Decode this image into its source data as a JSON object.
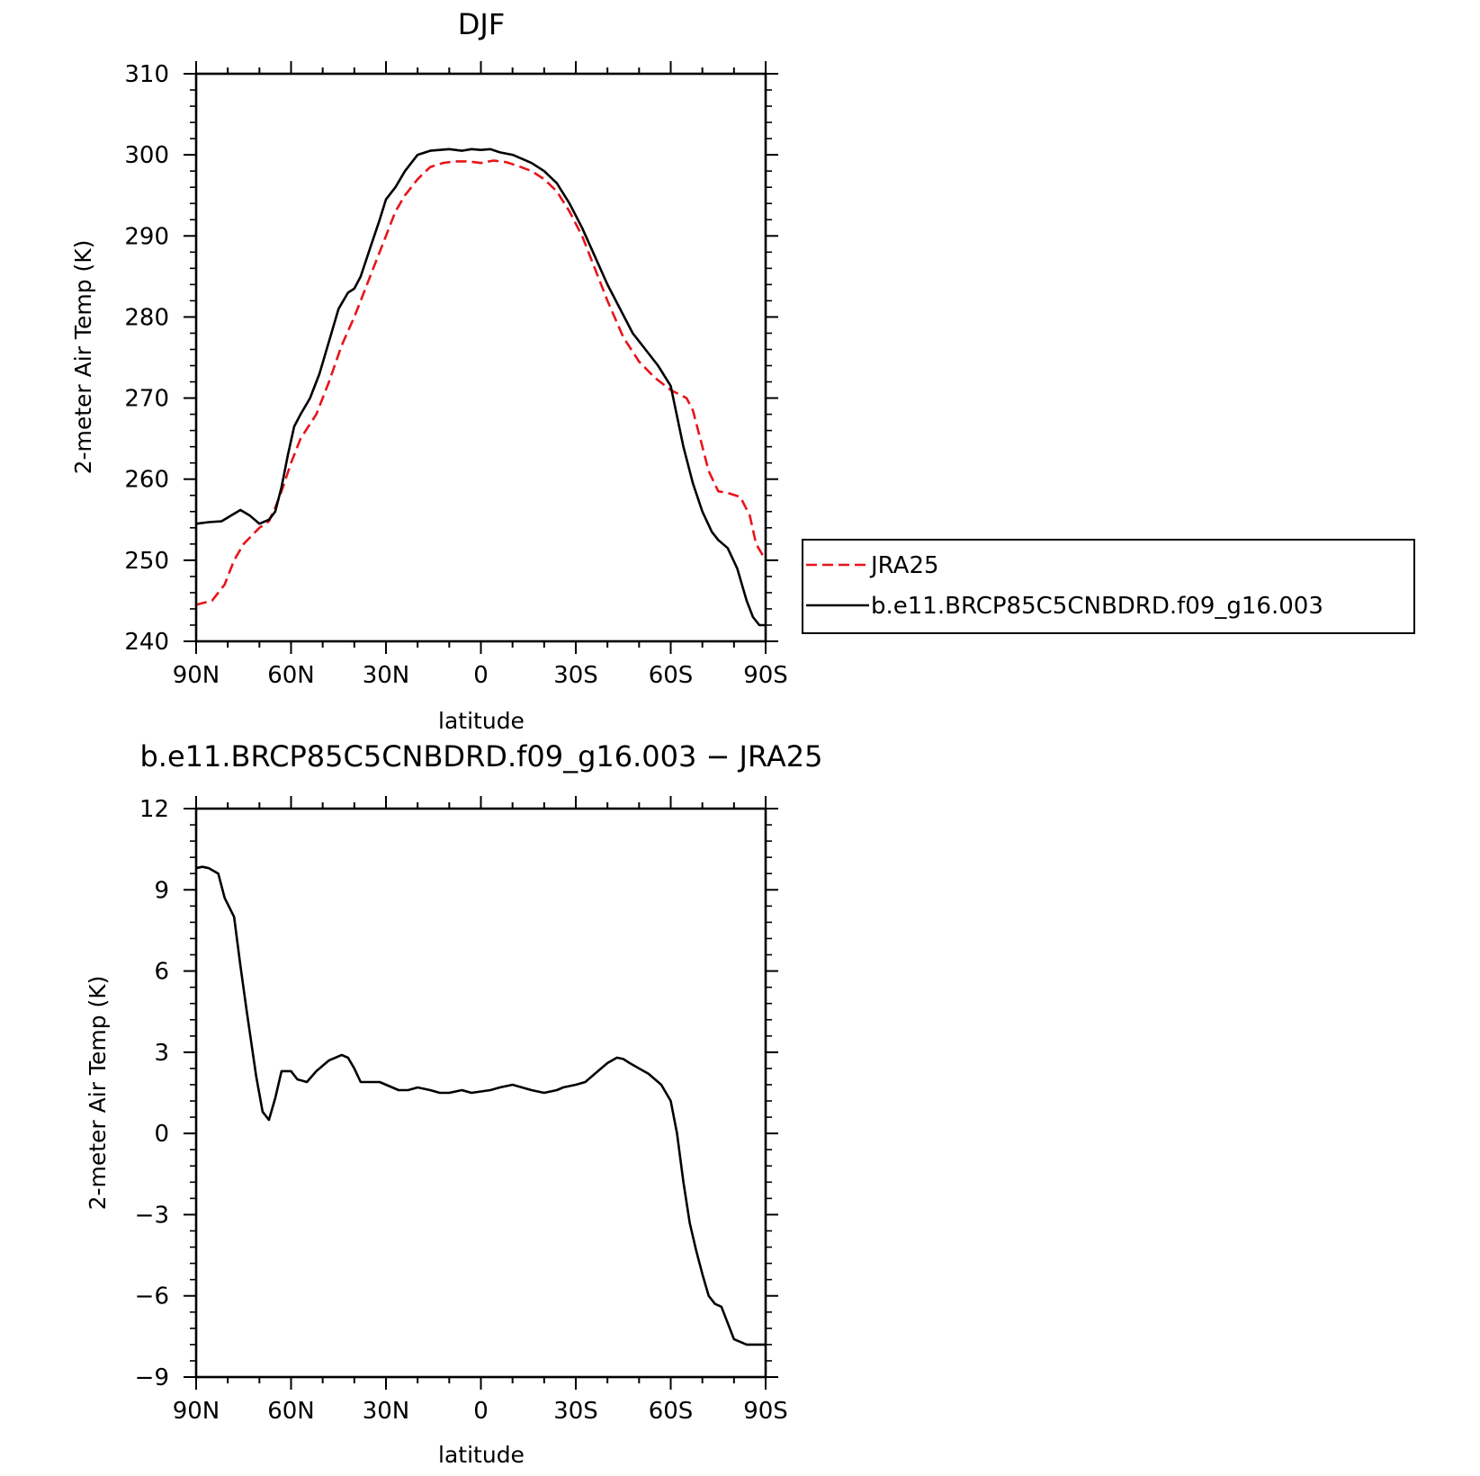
{
  "chart_data": [
    {
      "type": "line",
      "title": "DJF",
      "xlabel": "latitude",
      "ylabel": "2-meter Air Temp (K)",
      "xlim": [
        90,
        -90
      ],
      "ylim": [
        240,
        310
      ],
      "x_ticks": [
        90,
        60,
        30,
        0,
        -30,
        -60,
        -90
      ],
      "x_tick_labels": [
        "90N",
        "60N",
        "30N",
        "0",
        "30S",
        "60S",
        "90S"
      ],
      "y_ticks": [
        240,
        250,
        260,
        270,
        280,
        290,
        300,
        310
      ],
      "y_tick_labels": [
        "240",
        "250",
        "260",
        "270",
        "280",
        "290",
        "300",
        "310"
      ],
      "legend": {
        "placement": "right of plot",
        "entries": [
          "JRA25",
          "b.e11.BRCP85C5CNBDRD.f09_g16.003"
        ]
      },
      "series": [
        {
          "name": "JRA25",
          "color": "#e8141b",
          "dash": "dashed",
          "x": [
            90,
            85,
            81,
            78,
            75,
            70,
            67,
            65,
            63,
            60,
            57,
            52,
            48,
            44,
            40,
            37,
            34,
            30,
            27,
            24,
            20,
            16,
            12,
            8,
            4,
            0,
            -4,
            -8,
            -12,
            -16,
            -20,
            -24,
            -28,
            -32,
            -36,
            -40,
            -45,
            -50,
            -55,
            -60,
            -65,
            -67,
            -70,
            -72,
            -75,
            -78,
            -82,
            -85,
            -87,
            -90
          ],
          "y": [
            244.5,
            245.0,
            247.0,
            250.0,
            252.0,
            254.0,
            254.8,
            256.5,
            258.5,
            262.0,
            265.0,
            268.0,
            272.0,
            276.5,
            280.0,
            283.0,
            286.0,
            290.0,
            293.0,
            295.0,
            297.0,
            298.5,
            299.0,
            299.2,
            299.2,
            299.0,
            299.3,
            299.1,
            298.6,
            298.0,
            297.0,
            295.5,
            293.0,
            290.0,
            286.0,
            282.0,
            277.5,
            274.5,
            272.5,
            271.0,
            270.0,
            268.5,
            264.0,
            261.0,
            258.5,
            258.3,
            257.8,
            255.5,
            252.0,
            250.0
          ]
        },
        {
          "name": "b.e11.BRCP85C5CNBDRD.f09_g16.003",
          "color": "#000000",
          "dash": "solid",
          "x": [
            90,
            86,
            82,
            79,
            76,
            73,
            70,
            67,
            65,
            63,
            61,
            59,
            57,
            54,
            51,
            48,
            45,
            42,
            40,
            38,
            35,
            32,
            30,
            27,
            24,
            20,
            16,
            13,
            10,
            6,
            3,
            0,
            -3,
            -6,
            -10,
            -13,
            -16,
            -20,
            -24,
            -28,
            -32,
            -36,
            -40,
            -44,
            -48,
            -52,
            -56,
            -60,
            -64,
            -67,
            -70,
            -73,
            -75,
            -78,
            -81,
            -84,
            -86,
            -88,
            -90
          ],
          "y": [
            254.5,
            254.7,
            254.8,
            255.5,
            256.2,
            255.5,
            254.5,
            255.0,
            256.0,
            259.0,
            263.0,
            266.5,
            268.0,
            270.0,
            273.0,
            277.0,
            281.0,
            283.0,
            283.5,
            285.0,
            288.5,
            292.0,
            294.5,
            296.0,
            298.0,
            300.0,
            300.5,
            300.6,
            300.7,
            300.5,
            300.7,
            300.6,
            300.7,
            300.3,
            300.0,
            299.5,
            299.0,
            298.0,
            296.5,
            294.0,
            291.0,
            287.5,
            284.0,
            281.0,
            278.0,
            276.0,
            274.0,
            271.5,
            264.0,
            259.5,
            256.0,
            253.5,
            252.5,
            251.5,
            249.0,
            245.0,
            243.0,
            242.0,
            242.0
          ]
        }
      ]
    },
    {
      "type": "line",
      "title": "b.e11.BRCP85C5CNBDRD.f09_g16.003 − JRA25",
      "xlabel": "latitude",
      "ylabel": "2-meter Air Temp (K)",
      "xlim": [
        90,
        -90
      ],
      "ylim": [
        -9,
        12
      ],
      "x_ticks": [
        90,
        60,
        30,
        0,
        -30,
        -60,
        -90
      ],
      "x_tick_labels": [
        "90N",
        "60N",
        "30N",
        "0",
        "30S",
        "60S",
        "90S"
      ],
      "y_ticks": [
        -9,
        -6,
        -3,
        0,
        3,
        6,
        9,
        12
      ],
      "y_tick_labels": [
        "−9",
        "−6",
        "−3",
        "0",
        "3",
        "6",
        "9",
        "12"
      ],
      "series": [
        {
          "color": "#000000",
          "dash": "solid",
          "x": [
            90,
            88,
            86,
            83,
            81,
            78,
            76,
            74,
            71,
            69,
            67,
            65,
            63,
            60,
            58,
            55,
            52,
            48,
            44,
            42,
            40,
            38,
            35,
            32,
            30,
            26,
            23,
            20,
            16,
            13,
            10,
            6,
            3,
            0,
            -3,
            -6,
            -10,
            -13,
            -16,
            -20,
            -24,
            -26,
            -30,
            -33,
            -37,
            -40,
            -43,
            -45,
            -47,
            -50,
            -53,
            -57,
            -60,
            -62,
            -64,
            -66,
            -68,
            -70,
            -72,
            -74,
            -76,
            -78,
            -80,
            -82,
            -84,
            -86,
            -88,
            -90
          ],
          "y": [
            9.8,
            9.85,
            9.8,
            9.6,
            8.7,
            8.0,
            6.2,
            4.5,
            2.1,
            0.8,
            0.5,
            1.3,
            2.3,
            2.3,
            2.0,
            1.9,
            2.3,
            2.7,
            2.9,
            2.8,
            2.4,
            1.9,
            1.9,
            1.9,
            1.8,
            1.6,
            1.6,
            1.7,
            1.6,
            1.5,
            1.5,
            1.6,
            1.5,
            1.55,
            1.6,
            1.7,
            1.8,
            1.7,
            1.6,
            1.5,
            1.6,
            1.7,
            1.8,
            1.9,
            2.3,
            2.6,
            2.8,
            2.75,
            2.6,
            2.4,
            2.2,
            1.8,
            1.2,
            0.0,
            -1.8,
            -3.3,
            -4.3,
            -5.2,
            -6.0,
            -6.3,
            -6.4,
            -7.0,
            -7.6,
            -7.7,
            -7.8,
            -7.8,
            -7.8,
            -7.8
          ]
        }
      ]
    }
  ]
}
